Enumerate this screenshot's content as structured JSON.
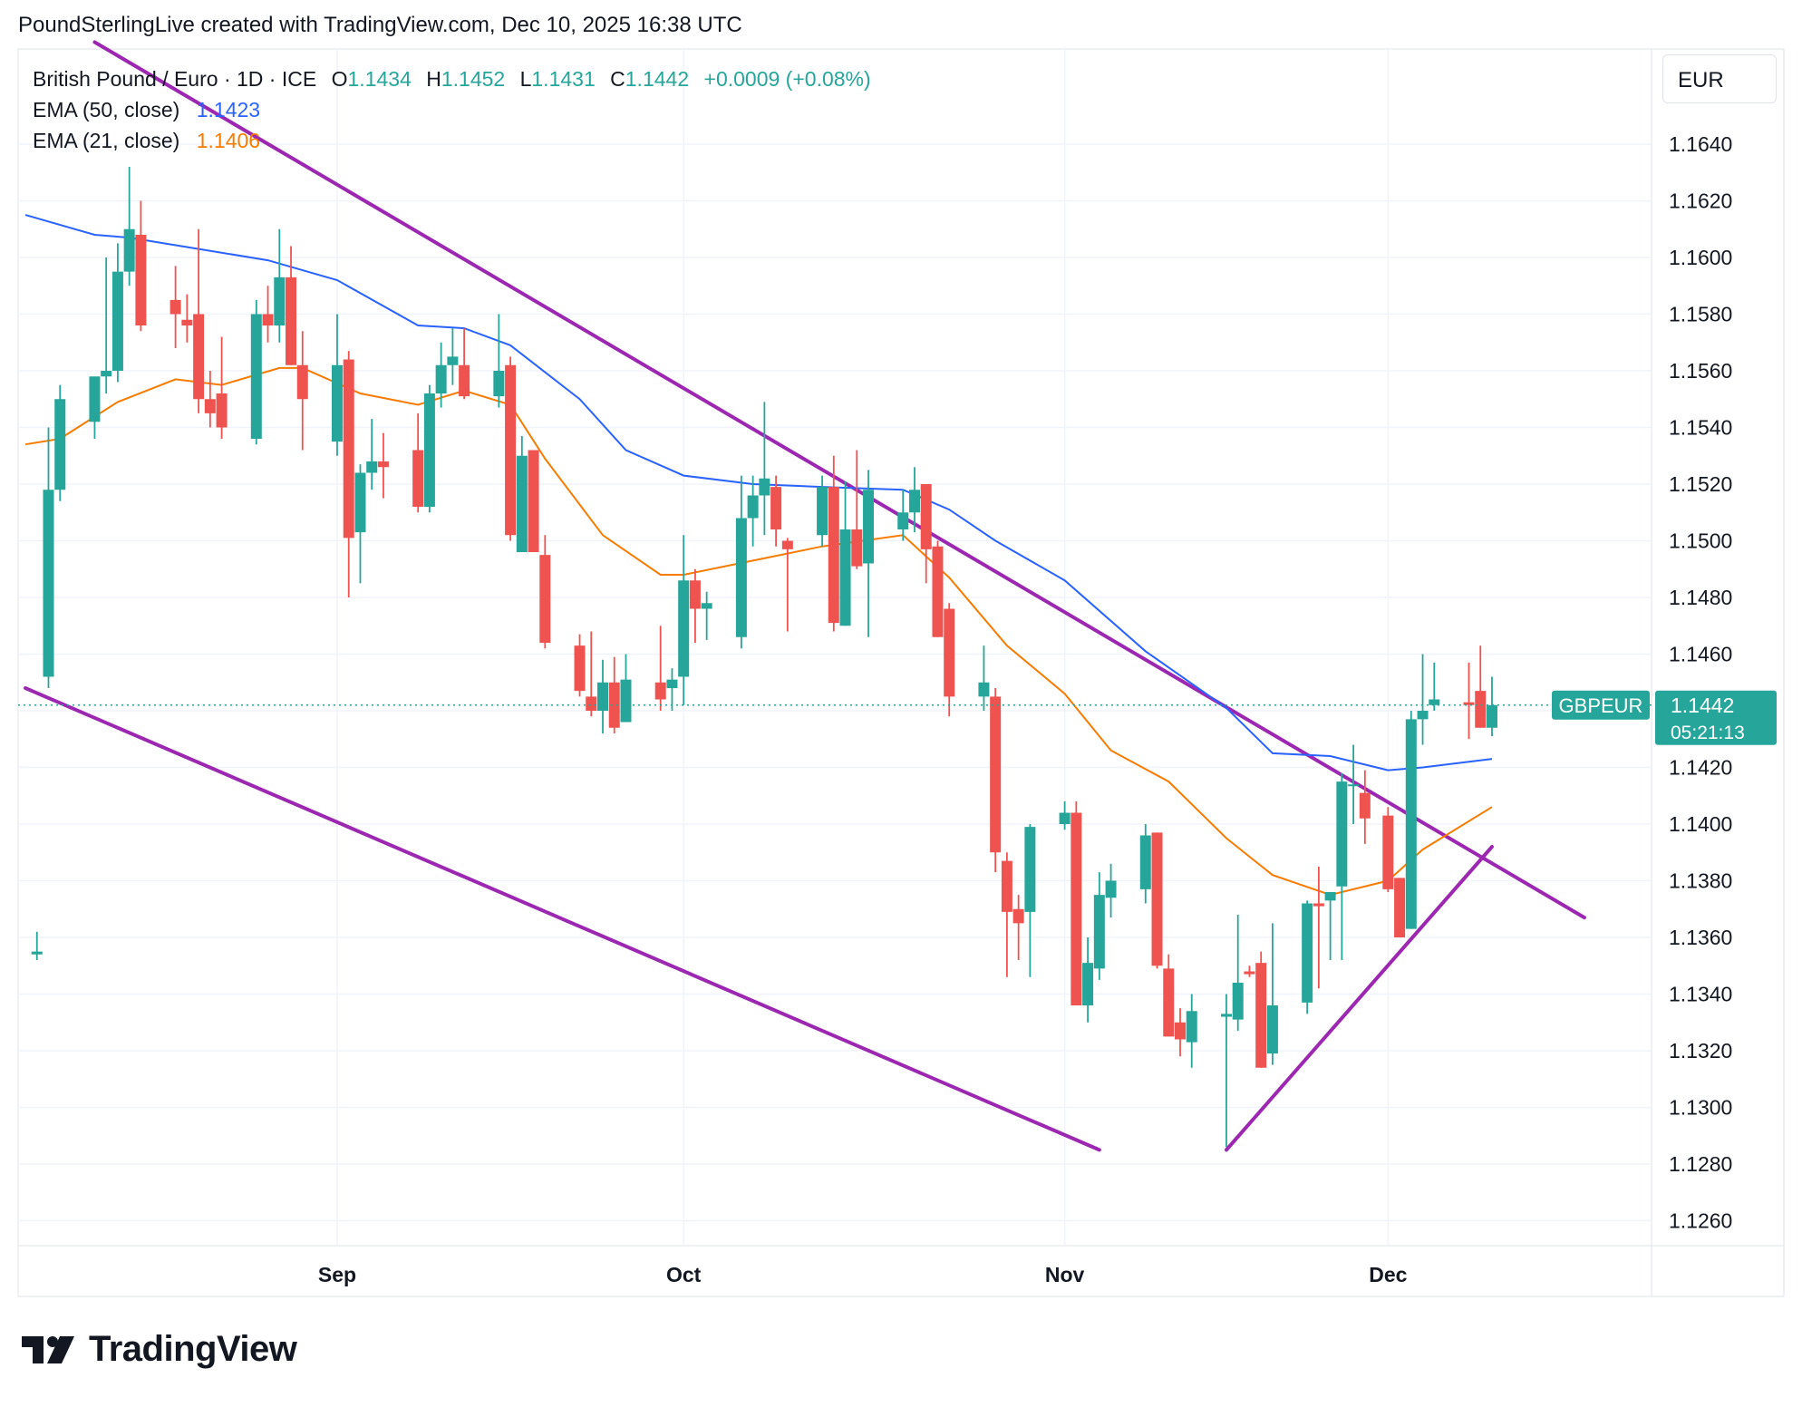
{
  "header": {
    "credit": "PoundSterlingLive created with TradingView.com, Dec 10, 2025 16:38 UTC"
  },
  "legend": {
    "symbol_desc": "British Pound / Euro · 1D · ICE",
    "o_label": "O",
    "o_value": "1.1434",
    "h_label": "H",
    "h_value": "1.1452",
    "l_label": "L",
    "l_value": "1.1431",
    "c_label": "C",
    "c_value": "1.1442",
    "change": "+0.0009 (+0.08%)",
    "ema50_label": "EMA (50, close)",
    "ema50_value": "1.1423",
    "ema21_label": "EMA (21, close)",
    "ema21_value": "1.1406"
  },
  "currency": "EUR",
  "last_price": {
    "symbol": "GBPEUR",
    "price": "1.1442",
    "countdown": "05:21:13"
  },
  "brand": {
    "name": "TradingView"
  },
  "colors": {
    "up": "#26a69a",
    "down": "#ef5350",
    "ema50": "#2962ff",
    "ema21": "#f57c00",
    "trendline": "#9c27b0",
    "grid": "#f0f3fa",
    "text": "#131722"
  },
  "chart_data": {
    "type": "candlestick",
    "symbol": "GBPEUR",
    "ylim": [
      1.1245,
      1.168
    ],
    "y_ticks": [
      "1.1640",
      "1.1620",
      "1.1600",
      "1.1580",
      "1.1560",
      "1.1540",
      "1.1520",
      "1.1500",
      "1.1480",
      "1.1460",
      "1.1440",
      "1.1420",
      "1.1400",
      "1.1380",
      "1.1360",
      "1.1340",
      "1.1320",
      "1.1300",
      "1.1280",
      "1.1260"
    ],
    "x_ticks": [
      {
        "label": "Sep",
        "date": "2025-09-01"
      },
      {
        "label": "Oct",
        "date": "2025-10-01"
      },
      {
        "label": "Nov",
        "date": "2025-11-03"
      },
      {
        "label": "Dec",
        "date": "2025-12-01"
      }
    ],
    "candles": [
      {
        "d": "2025-08-06",
        "o": 1.1354,
        "h": 1.1362,
        "l": 1.1352,
        "c": 1.1355
      },
      {
        "d": "2025-08-07",
        "o": 1.1452,
        "h": 1.154,
        "l": 1.1448,
        "c": 1.1518
      },
      {
        "d": "2025-08-08",
        "o": 1.1518,
        "h": 1.1555,
        "l": 1.1514,
        "c": 1.155
      },
      {
        "d": "2025-08-11",
        "o": 1.1542,
        "h": 1.1555,
        "l": 1.1536,
        "c": 1.1558
      },
      {
        "d": "2025-08-12",
        "o": 1.1558,
        "h": 1.16,
        "l": 1.1552,
        "c": 1.156
      },
      {
        "d": "2025-08-13",
        "o": 1.156,
        "h": 1.1605,
        "l": 1.1556,
        "c": 1.1595
      },
      {
        "d": "2025-08-14",
        "o": 1.1595,
        "h": 1.1632,
        "l": 1.159,
        "c": 1.161
      },
      {
        "d": "2025-08-15",
        "o": 1.1608,
        "h": 1.162,
        "l": 1.1574,
        "c": 1.1576
      },
      {
        "d": "2025-08-18",
        "o": 1.1585,
        "h": 1.1597,
        "l": 1.1568,
        "c": 1.158
      },
      {
        "d": "2025-08-19",
        "o": 1.1578,
        "h": 1.1587,
        "l": 1.157,
        "c": 1.1576
      },
      {
        "d": "2025-08-20",
        "o": 1.158,
        "h": 1.161,
        "l": 1.1545,
        "c": 1.155
      },
      {
        "d": "2025-08-21",
        "o": 1.155,
        "h": 1.156,
        "l": 1.154,
        "c": 1.1545
      },
      {
        "d": "2025-08-22",
        "o": 1.1552,
        "h": 1.1572,
        "l": 1.1536,
        "c": 1.154
      },
      {
        "d": "2025-08-25",
        "o": 1.1536,
        "h": 1.1585,
        "l": 1.1534,
        "c": 1.158
      },
      {
        "d": "2025-08-26",
        "o": 1.158,
        "h": 1.159,
        "l": 1.157,
        "c": 1.1576
      },
      {
        "d": "2025-08-27",
        "o": 1.1576,
        "h": 1.161,
        "l": 1.157,
        "c": 1.1593
      },
      {
        "d": "2025-08-28",
        "o": 1.1593,
        "h": 1.1604,
        "l": 1.1562,
        "c": 1.1562
      },
      {
        "d": "2025-08-29",
        "o": 1.1562,
        "h": 1.1574,
        "l": 1.1532,
        "c": 1.155
      },
      {
        "d": "2025-09-01",
        "o": 1.1535,
        "h": 1.158,
        "l": 1.153,
        "c": 1.1562
      },
      {
        "d": "2025-09-02",
        "o": 1.1564,
        "h": 1.1567,
        "l": 1.148,
        "c": 1.1501
      },
      {
        "d": "2025-09-03",
        "o": 1.1503,
        "h": 1.1527,
        "l": 1.1485,
        "c": 1.1524
      },
      {
        "d": "2025-09-04",
        "o": 1.1524,
        "h": 1.1543,
        "l": 1.1518,
        "c": 1.1528
      },
      {
        "d": "2025-09-05",
        "o": 1.1528,
        "h": 1.1538,
        "l": 1.1515,
        "c": 1.1526
      },
      {
        "d": "2025-09-08",
        "o": 1.1532,
        "h": 1.1545,
        "l": 1.151,
        "c": 1.1512
      },
      {
        "d": "2025-09-09",
        "o": 1.1512,
        "h": 1.1555,
        "l": 1.151,
        "c": 1.1552
      },
      {
        "d": "2025-09-10",
        "o": 1.1552,
        "h": 1.157,
        "l": 1.1547,
        "c": 1.1562
      },
      {
        "d": "2025-09-11",
        "o": 1.1562,
        "h": 1.1575,
        "l": 1.1555,
        "c": 1.1565
      },
      {
        "d": "2025-09-12",
        "o": 1.1562,
        "h": 1.1575,
        "l": 1.155,
        "c": 1.1551
      },
      {
        "d": "2025-09-15",
        "o": 1.1551,
        "h": 1.158,
        "l": 1.1547,
        "c": 1.156
      },
      {
        "d": "2025-09-16",
        "o": 1.1562,
        "h": 1.1565,
        "l": 1.15,
        "c": 1.1502
      },
      {
        "d": "2025-09-17",
        "o": 1.1496,
        "h": 1.1537,
        "l": 1.1496,
        "c": 1.153
      },
      {
        "d": "2025-09-18",
        "o": 1.1532,
        "h": 1.1532,
        "l": 1.1496,
        "c": 1.1496
      },
      {
        "d": "2025-09-19",
        "o": 1.1495,
        "h": 1.1502,
        "l": 1.1462,
        "c": 1.1464
      },
      {
        "d": "2025-09-22",
        "o": 1.1463,
        "h": 1.1467,
        "l": 1.1445,
        "c": 1.1447
      },
      {
        "d": "2025-09-23",
        "o": 1.1445,
        "h": 1.1468,
        "l": 1.1438,
        "c": 1.144
      },
      {
        "d": "2025-09-24",
        "o": 1.144,
        "h": 1.1458,
        "l": 1.1432,
        "c": 1.145
      },
      {
        "d": "2025-09-25",
        "o": 1.145,
        "h": 1.1459,
        "l": 1.1432,
        "c": 1.1434
      },
      {
        "d": "2025-09-26",
        "o": 1.1436,
        "h": 1.146,
        "l": 1.1436,
        "c": 1.1451
      },
      {
        "d": "2025-09-29",
        "o": 1.145,
        "h": 1.147,
        "l": 1.144,
        "c": 1.1444
      },
      {
        "d": "2025-09-30",
        "o": 1.1448,
        "h": 1.1455,
        "l": 1.144,
        "c": 1.1451
      },
      {
        "d": "2025-10-01",
        "o": 1.1452,
        "h": 1.1502,
        "l": 1.1442,
        "c": 1.1486
      },
      {
        "d": "2025-10-02",
        "o": 1.1486,
        "h": 1.149,
        "l": 1.1464,
        "c": 1.1476
      },
      {
        "d": "2025-10-03",
        "o": 1.1476,
        "h": 1.1482,
        "l": 1.1465,
        "c": 1.1478
      },
      {
        "d": "2025-10-06",
        "o": 1.1466,
        "h": 1.1523,
        "l": 1.1462,
        "c": 1.1508
      },
      {
        "d": "2025-10-07",
        "o": 1.1508,
        "h": 1.1523,
        "l": 1.1498,
        "c": 1.1516
      },
      {
        "d": "2025-10-08",
        "o": 1.1516,
        "h": 1.1549,
        "l": 1.1502,
        "c": 1.1522
      },
      {
        "d": "2025-10-09",
        "o": 1.1519,
        "h": 1.1523,
        "l": 1.1498,
        "c": 1.1504
      },
      {
        "d": "2025-10-10",
        "o": 1.15,
        "h": 1.1501,
        "l": 1.1468,
        "c": 1.1497
      },
      {
        "d": "2025-10-13",
        "o": 1.1502,
        "h": 1.1523,
        "l": 1.1498,
        "c": 1.1519
      },
      {
        "d": "2025-10-14",
        "o": 1.1519,
        "h": 1.153,
        "l": 1.1468,
        "c": 1.1471
      },
      {
        "d": "2025-10-15",
        "o": 1.147,
        "h": 1.1521,
        "l": 1.147,
        "c": 1.1504
      },
      {
        "d": "2025-10-16",
        "o": 1.1504,
        "h": 1.1532,
        "l": 1.149,
        "c": 1.1491
      },
      {
        "d": "2025-10-17",
        "o": 1.1492,
        "h": 1.1525,
        "l": 1.1466,
        "c": 1.1518
      },
      {
        "d": "2025-10-20",
        "o": 1.1504,
        "h": 1.1518,
        "l": 1.15,
        "c": 1.151
      },
      {
        "d": "2025-10-21",
        "o": 1.151,
        "h": 1.1526,
        "l": 1.1503,
        "c": 1.1518
      },
      {
        "d": "2025-10-22",
        "o": 1.152,
        "h": 1.152,
        "l": 1.1485,
        "c": 1.1497
      },
      {
        "d": "2025-10-23",
        "o": 1.1498,
        "h": 1.15,
        "l": 1.1466,
        "c": 1.1466
      },
      {
        "d": "2025-10-24",
        "o": 1.1476,
        "h": 1.1478,
        "l": 1.1438,
        "c": 1.1445
      },
      {
        "d": "2025-10-27",
        "o": 1.1445,
        "h": 1.1463,
        "l": 1.144,
        "c": 1.145
      },
      {
        "d": "2025-10-28",
        "o": 1.1445,
        "h": 1.1448,
        "l": 1.1383,
        "c": 1.139
      },
      {
        "d": "2025-10-29",
        "o": 1.1387,
        "h": 1.139,
        "l": 1.1346,
        "c": 1.1369
      },
      {
        "d": "2025-10-30",
        "o": 1.137,
        "h": 1.1375,
        "l": 1.1352,
        "c": 1.1365
      },
      {
        "d": "2025-10-31",
        "o": 1.1369,
        "h": 1.14,
        "l": 1.1346,
        "c": 1.1399
      },
      {
        "d": "2025-11-03",
        "o": 1.14,
        "h": 1.1408,
        "l": 1.1398,
        "c": 1.1404
      },
      {
        "d": "2025-11-04",
        "o": 1.1404,
        "h": 1.1408,
        "l": 1.1336,
        "c": 1.1336
      },
      {
        "d": "2025-11-05",
        "o": 1.1336,
        "h": 1.136,
        "l": 1.133,
        "c": 1.1351
      },
      {
        "d": "2025-11-06",
        "o": 1.1349,
        "h": 1.1383,
        "l": 1.1345,
        "c": 1.1375
      },
      {
        "d": "2025-11-07",
        "o": 1.1374,
        "h": 1.1386,
        "l": 1.1367,
        "c": 1.138
      },
      {
        "d": "2025-11-10",
        "o": 1.1377,
        "h": 1.14,
        "l": 1.1372,
        "c": 1.1396
      },
      {
        "d": "2025-11-11",
        "o": 1.1397,
        "h": 1.1397,
        "l": 1.1349,
        "c": 1.135
      },
      {
        "d": "2025-11-12",
        "o": 1.1349,
        "h": 1.1354,
        "l": 1.1325,
        "c": 1.1325
      },
      {
        "d": "2025-11-13",
        "o": 1.133,
        "h": 1.1335,
        "l": 1.1318,
        "c": 1.1324
      },
      {
        "d": "2025-11-14",
        "o": 1.1323,
        "h": 1.134,
        "l": 1.1314,
        "c": 1.1334
      },
      {
        "d": "2025-11-17",
        "o": 1.1332,
        "h": 1.134,
        "l": 1.1286,
        "c": 1.1333
      },
      {
        "d": "2025-11-18",
        "o": 1.1331,
        "h": 1.1368,
        "l": 1.1327,
        "c": 1.1344
      },
      {
        "d": "2025-11-19",
        "o": 1.1348,
        "h": 1.135,
        "l": 1.1346,
        "c": 1.1347
      },
      {
        "d": "2025-11-20",
        "o": 1.1351,
        "h": 1.1355,
        "l": 1.1314,
        "c": 1.1314
      },
      {
        "d": "2025-11-21",
        "o": 1.1319,
        "h": 1.1365,
        "l": 1.1315,
        "c": 1.1336
      },
      {
        "d": "2025-11-24",
        "o": 1.1337,
        "h": 1.1373,
        "l": 1.1333,
        "c": 1.1372
      },
      {
        "d": "2025-11-25",
        "o": 1.1372,
        "h": 1.1385,
        "l": 1.1342,
        "c": 1.1371
      },
      {
        "d": "2025-11-26",
        "o": 1.1373,
        "h": 1.1374,
        "l": 1.1352,
        "c": 1.1376
      },
      {
        "d": "2025-11-27",
        "o": 1.1378,
        "h": 1.1418,
        "l": 1.1352,
        "c": 1.1415
      },
      {
        "d": "2025-11-28",
        "o": 1.1414,
        "h": 1.1428,
        "l": 1.14,
        "c": 1.1414
      },
      {
        "d": "2025-11-29",
        "o": 1.1411,
        "h": 1.1419,
        "l": 1.1393,
        "c": 1.1402
      },
      {
        "d": "2025-12-01",
        "o": 1.1403,
        "h": 1.1406,
        "l": 1.1376,
        "c": 1.1377
      },
      {
        "d": "2025-12-02",
        "o": 1.1381,
        "h": 1.1381,
        "l": 1.136,
        "c": 1.136
      },
      {
        "d": "2025-12-03",
        "o": 1.1363,
        "h": 1.144,
        "l": 1.1363,
        "c": 1.1437
      },
      {
        "d": "2025-12-04",
        "o": 1.1437,
        "h": 1.146,
        "l": 1.1428,
        "c": 1.144
      },
      {
        "d": "2025-12-05",
        "o": 1.1442,
        "h": 1.1457,
        "l": 1.144,
        "c": 1.1444
      },
      {
        "d": "2025-12-08",
        "o": 1.1443,
        "h": 1.1457,
        "l": 1.143,
        "c": 1.1442
      },
      {
        "d": "2025-12-09",
        "o": 1.1447,
        "h": 1.1463,
        "l": 1.1434,
        "c": 1.1434
      },
      {
        "d": "2025-12-10",
        "o": 1.1434,
        "h": 1.1452,
        "l": 1.1431,
        "c": 1.1442
      }
    ],
    "ema50": [
      [
        "2025-08-05",
        1.1615
      ],
      [
        "2025-08-11",
        1.1608
      ],
      [
        "2025-08-14",
        1.1607
      ],
      [
        "2025-08-20",
        1.1603
      ],
      [
        "2025-08-26",
        1.1599
      ],
      [
        "2025-09-01",
        1.1592
      ],
      [
        "2025-09-08",
        1.1576
      ],
      [
        "2025-09-12",
        1.1575
      ],
      [
        "2025-09-16",
        1.1569
      ],
      [
        "2025-09-22",
        1.155
      ],
      [
        "2025-09-26",
        1.1532
      ],
      [
        "2025-10-01",
        1.1523
      ],
      [
        "2025-10-07",
        1.152
      ],
      [
        "2025-10-13",
        1.1519
      ],
      [
        "2025-10-20",
        1.1518
      ],
      [
        "2025-10-24",
        1.1511
      ],
      [
        "2025-10-28",
        1.15
      ],
      [
        "2025-11-03",
        1.1486
      ],
      [
        "2025-11-10",
        1.1461
      ],
      [
        "2025-11-17",
        1.1441
      ],
      [
        "2025-11-21",
        1.1425
      ],
      [
        "2025-11-26",
        1.1424
      ],
      [
        "2025-12-01",
        1.1419
      ],
      [
        "2025-12-04",
        1.142
      ],
      [
        "2025-12-10",
        1.1423
      ]
    ],
    "ema21": [
      [
        "2025-08-05",
        1.1534
      ],
      [
        "2025-08-08",
        1.1536
      ],
      [
        "2025-08-13",
        1.1549
      ],
      [
        "2025-08-18",
        1.1557
      ],
      [
        "2025-08-22",
        1.1555
      ],
      [
        "2025-08-27",
        1.1561
      ],
      [
        "2025-08-29",
        1.1561
      ],
      [
        "2025-09-03",
        1.1552
      ],
      [
        "2025-09-08",
        1.1548
      ],
      [
        "2025-09-12",
        1.1553
      ],
      [
        "2025-09-16",
        1.1548
      ],
      [
        "2025-09-19",
        1.1529
      ],
      [
        "2025-09-24",
        1.1502
      ],
      [
        "2025-09-29",
        1.1488
      ],
      [
        "2025-10-01",
        1.1488
      ],
      [
        "2025-10-07",
        1.1493
      ],
      [
        "2025-10-13",
        1.1498
      ],
      [
        "2025-10-20",
        1.1502
      ],
      [
        "2025-10-24",
        1.1487
      ],
      [
        "2025-10-29",
        1.1463
      ],
      [
        "2025-11-03",
        1.1446
      ],
      [
        "2025-11-07",
        1.1426
      ],
      [
        "2025-11-12",
        1.1415
      ],
      [
        "2025-11-17",
        1.1395
      ],
      [
        "2025-11-21",
        1.1382
      ],
      [
        "2025-11-26",
        1.1375
      ],
      [
        "2025-12-01",
        1.138
      ],
      [
        "2025-12-04",
        1.1391
      ],
      [
        "2025-12-10",
        1.1406
      ]
    ],
    "trendlines": [
      {
        "name": "upper-channel",
        "from": [
          "2025-08-11",
          1.1676
        ],
        "to": [
          "2025-12-18",
          1.1367
        ]
      },
      {
        "name": "lower-channel",
        "from": [
          "2025-08-05",
          1.1448
        ],
        "to": [
          "2025-11-06",
          1.1285
        ]
      },
      {
        "name": "rising-support",
        "from": [
          "2025-11-17",
          1.1285
        ],
        "to": [
          "2025-12-10",
          1.1392
        ]
      }
    ]
  }
}
